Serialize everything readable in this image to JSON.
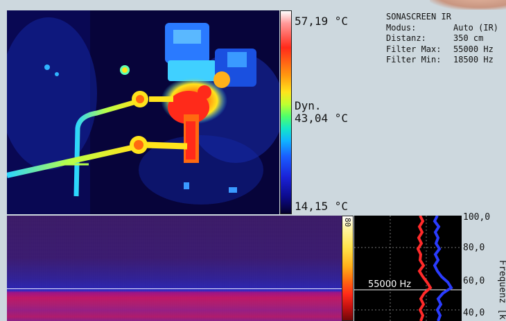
{
  "thermal_scale": {
    "max_label": "57,19 °C",
    "mid_label_1": "Dyn.",
    "mid_label_2": "43,04 °C",
    "min_label": "14,15 °C"
  },
  "info": {
    "title": "SONASCREEN IR",
    "rows": [
      {
        "key": "Modus:",
        "value": "Auto (IR)"
      },
      {
        "key": "Distanz:",
        "value": "350 cm"
      },
      {
        "key": "Filter Max:",
        "value": "55000 Hz"
      },
      {
        "key": "Filter Min:",
        "value": "18500 Hz"
      }
    ]
  },
  "spectrogram": {
    "scale_value": "80"
  },
  "plot": {
    "marker_label": "55000 Hz",
    "y_ticks": [
      "100,0",
      "80,0",
      "60,0",
      "40,0"
    ],
    "y_title": "Frequenz [k"
  },
  "colors": {
    "background": "#cdd8de",
    "series_red": "#ff2a2a",
    "series_blue": "#2a3cff"
  }
}
